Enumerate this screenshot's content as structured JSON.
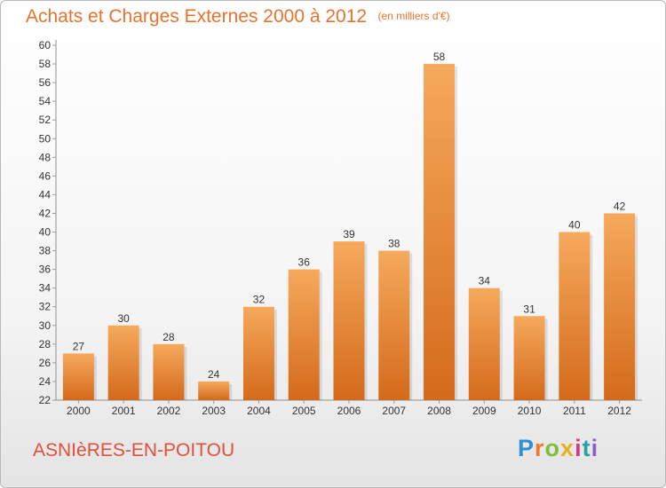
{
  "header": {
    "title": "Achats et Charges Externes 2000 à 2012",
    "subtitle": "(en milliers d'€)"
  },
  "footer": {
    "commune": "ASNIèRES-EN-POITOU",
    "brand_letters": [
      "P",
      "r",
      "o",
      "x",
      "i",
      "t",
      "i"
    ]
  },
  "colors": {
    "accent": "#e8732f",
    "commune": "#e0503a",
    "bar_top": "#f6a95c",
    "bar_bottom": "#d46a1b",
    "axis": "#8f8f8f",
    "grid_tick": "#9a9a9a"
  },
  "chart_data": {
    "type": "bar",
    "categories": [
      "2000",
      "2001",
      "2002",
      "2003",
      "2004",
      "2005",
      "2006",
      "2007",
      "2008",
      "2009",
      "2010",
      "2011",
      "2012"
    ],
    "values": [
      27,
      30,
      28,
      24,
      32,
      36,
      39,
      38,
      58,
      34,
      31,
      40,
      42
    ],
    "title": "Achats et Charges Externes 2000 à 2012",
    "subtitle": "(en milliers d'€)",
    "ylim": [
      22,
      60
    ],
    "ytick_step": 2,
    "data_labels": true,
    "grid": false,
    "legend": "none"
  }
}
